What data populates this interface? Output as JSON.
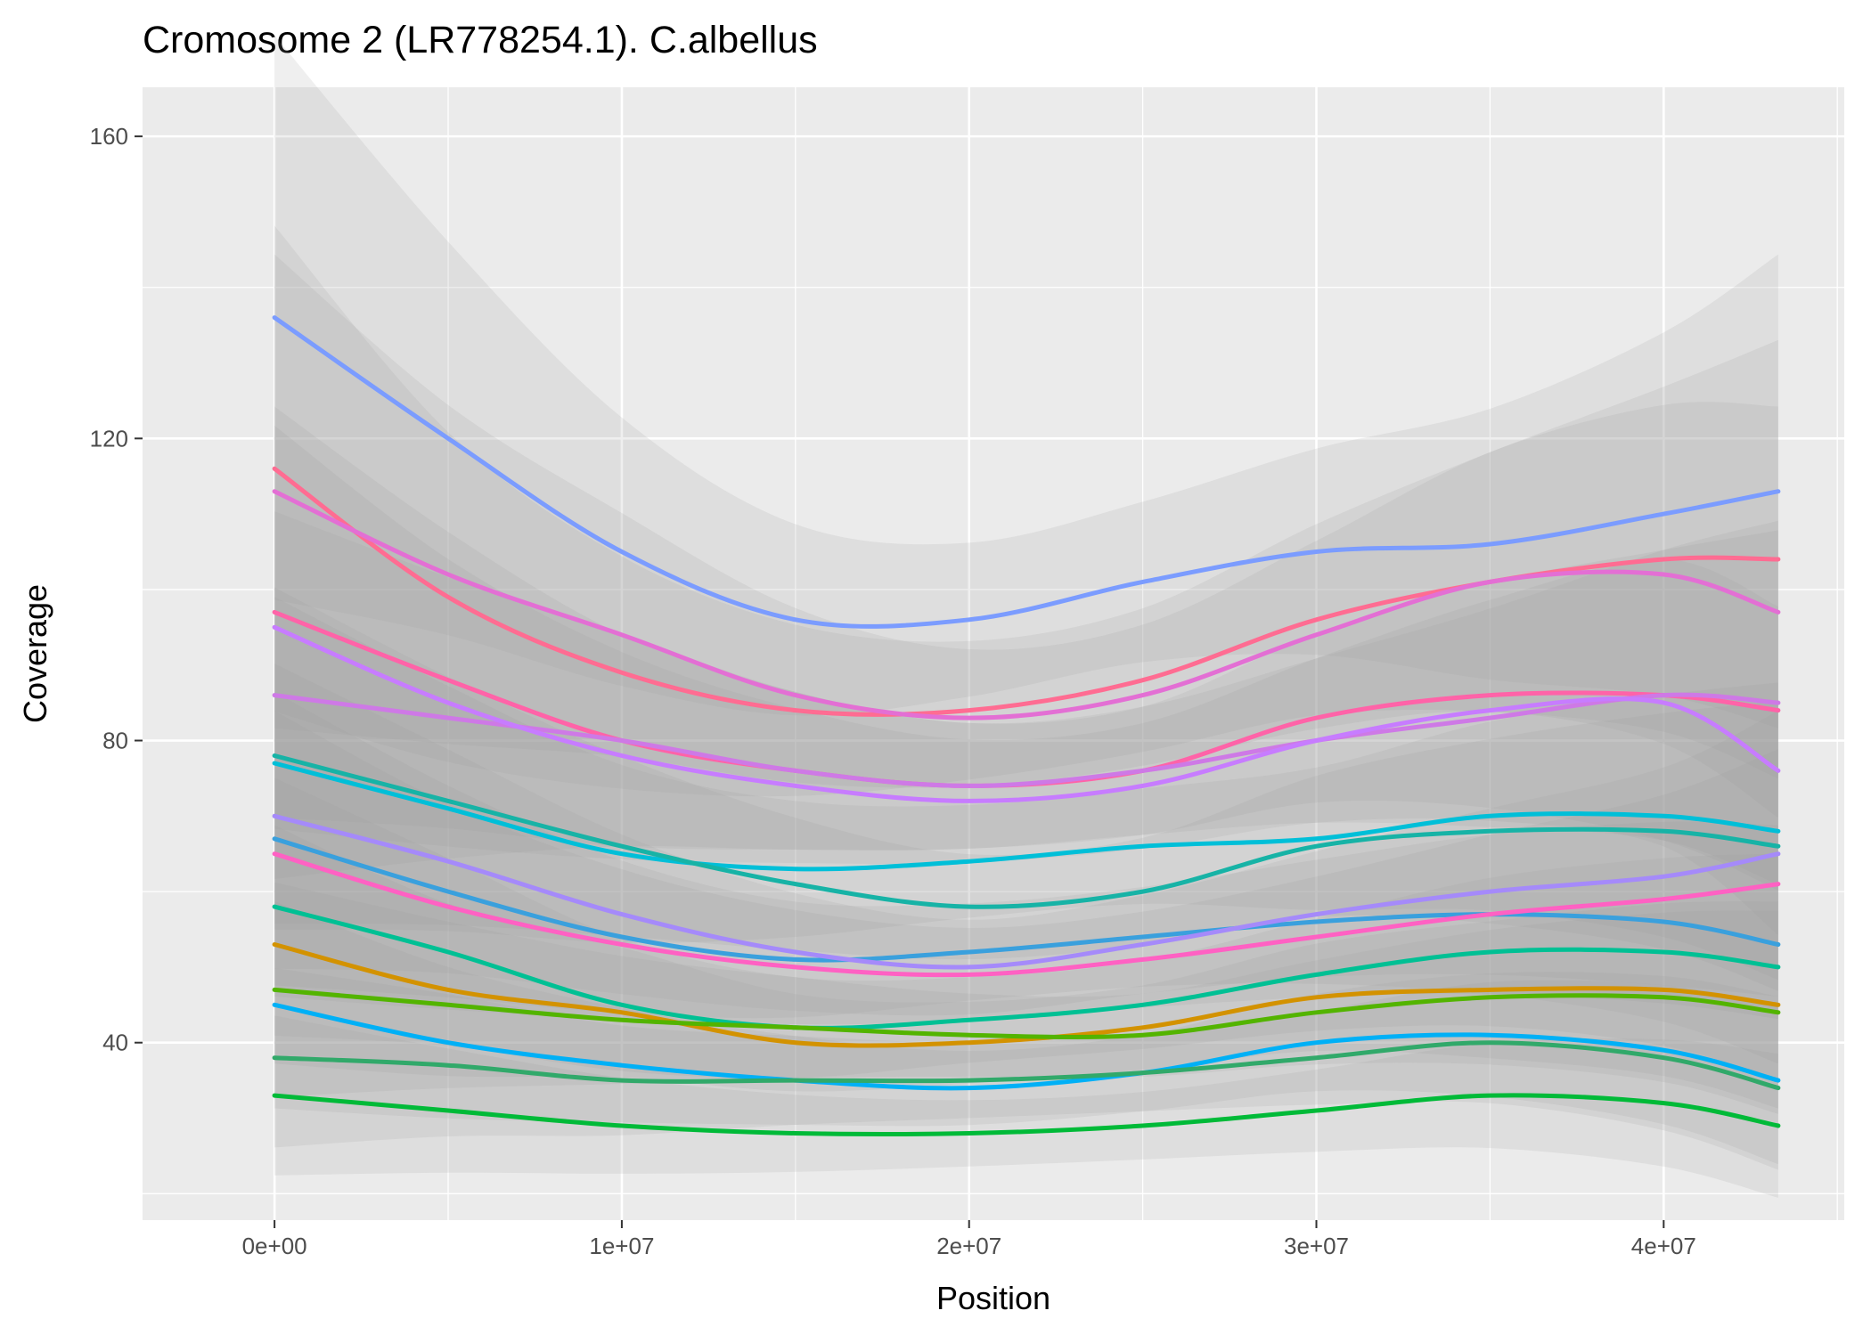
{
  "chart_data": {
    "type": "line",
    "title": "Cromosome 2 (LR778254.1). C.albellus",
    "xlabel": "Position",
    "ylabel": "Coverage",
    "xlim": [
      -3800000,
      45200000
    ],
    "ylim": [
      16500,
      166500
    ],
    "x_ticks": [
      0,
      10000000,
      20000000,
      30000000,
      40000000
    ],
    "x_tick_labels": [
      "0e+00",
      "1e+07",
      "2e+07",
      "3e+07",
      "4e+07"
    ],
    "y_ticks": [
      40,
      80,
      120,
      160
    ],
    "y_tick_labels": [
      "40",
      "80",
      "120",
      "160"
    ],
    "grid": true,
    "legend": "none",
    "x": [
      0,
      5000000,
      10000000,
      15000000,
      20000000,
      25000000,
      30000000,
      35000000,
      40000000,
      43300000
    ],
    "series": [
      {
        "color": "#7b9cff",
        "values": [
          136,
          120,
          105,
          96,
          96,
          101,
          105,
          106,
          110,
          113
        ]
      },
      {
        "color": "#ff6c92",
        "values": [
          116,
          99,
          89,
          84,
          84,
          88,
          96,
          101,
          104,
          104
        ]
      },
      {
        "color": "#e36fd4",
        "values": [
          113,
          102,
          94,
          86,
          83,
          86,
          94,
          101,
          102,
          97
        ]
      },
      {
        "color": "#ff63a8",
        "values": [
          97,
          88,
          80,
          76,
          74,
          76,
          83,
          86,
          86,
          84
        ]
      },
      {
        "color": "#ce79e6",
        "values": [
          86,
          83,
          80,
          76,
          74,
          76,
          80,
          83,
          86,
          85
        ]
      },
      {
        "color": "#c77cff",
        "values": [
          95,
          85,
          78,
          74,
          72,
          74,
          80,
          84,
          85,
          76
        ]
      },
      {
        "color": "#00bfd8",
        "values": [
          77,
          71,
          65,
          63,
          64,
          66,
          67,
          70,
          70,
          68
        ]
      },
      {
        "color": "#17b3a6",
        "values": [
          78,
          72,
          66,
          61,
          58,
          60,
          66,
          68,
          68,
          66
        ]
      },
      {
        "color": "#3aa0dd",
        "values": [
          67,
          60,
          54,
          51,
          52,
          54,
          56,
          57,
          56,
          53
        ]
      },
      {
        "color": "#a58afa",
        "values": [
          70,
          64,
          57,
          52,
          50,
          53,
          57,
          60,
          62,
          65
        ]
      },
      {
        "color": "#ff61c3",
        "values": [
          65,
          58,
          53,
          50,
          49,
          51,
          54,
          57,
          59,
          61
        ]
      },
      {
        "color": "#00c094",
        "values": [
          58,
          52,
          45,
          42,
          43,
          45,
          49,
          52,
          52,
          50
        ]
      },
      {
        "color": "#d39200",
        "values": [
          53,
          47,
          44,
          40,
          40,
          42,
          46,
          47,
          47,
          45
        ]
      },
      {
        "color": "#53b400",
        "values": [
          47,
          45,
          43,
          42,
          41,
          41,
          44,
          46,
          46,
          44
        ]
      },
      {
        "color": "#00b0f6",
        "values": [
          45,
          40,
          37,
          35,
          34,
          36,
          40,
          41,
          39,
          35
        ]
      },
      {
        "color": "#31a96a",
        "values": [
          38,
          37,
          35,
          35,
          35,
          36,
          38,
          40,
          38,
          34
        ]
      },
      {
        "color": "#00ba38",
        "values": [
          33,
          31,
          29,
          28,
          28,
          29,
          31,
          33,
          32,
          29
        ]
      }
    ]
  }
}
